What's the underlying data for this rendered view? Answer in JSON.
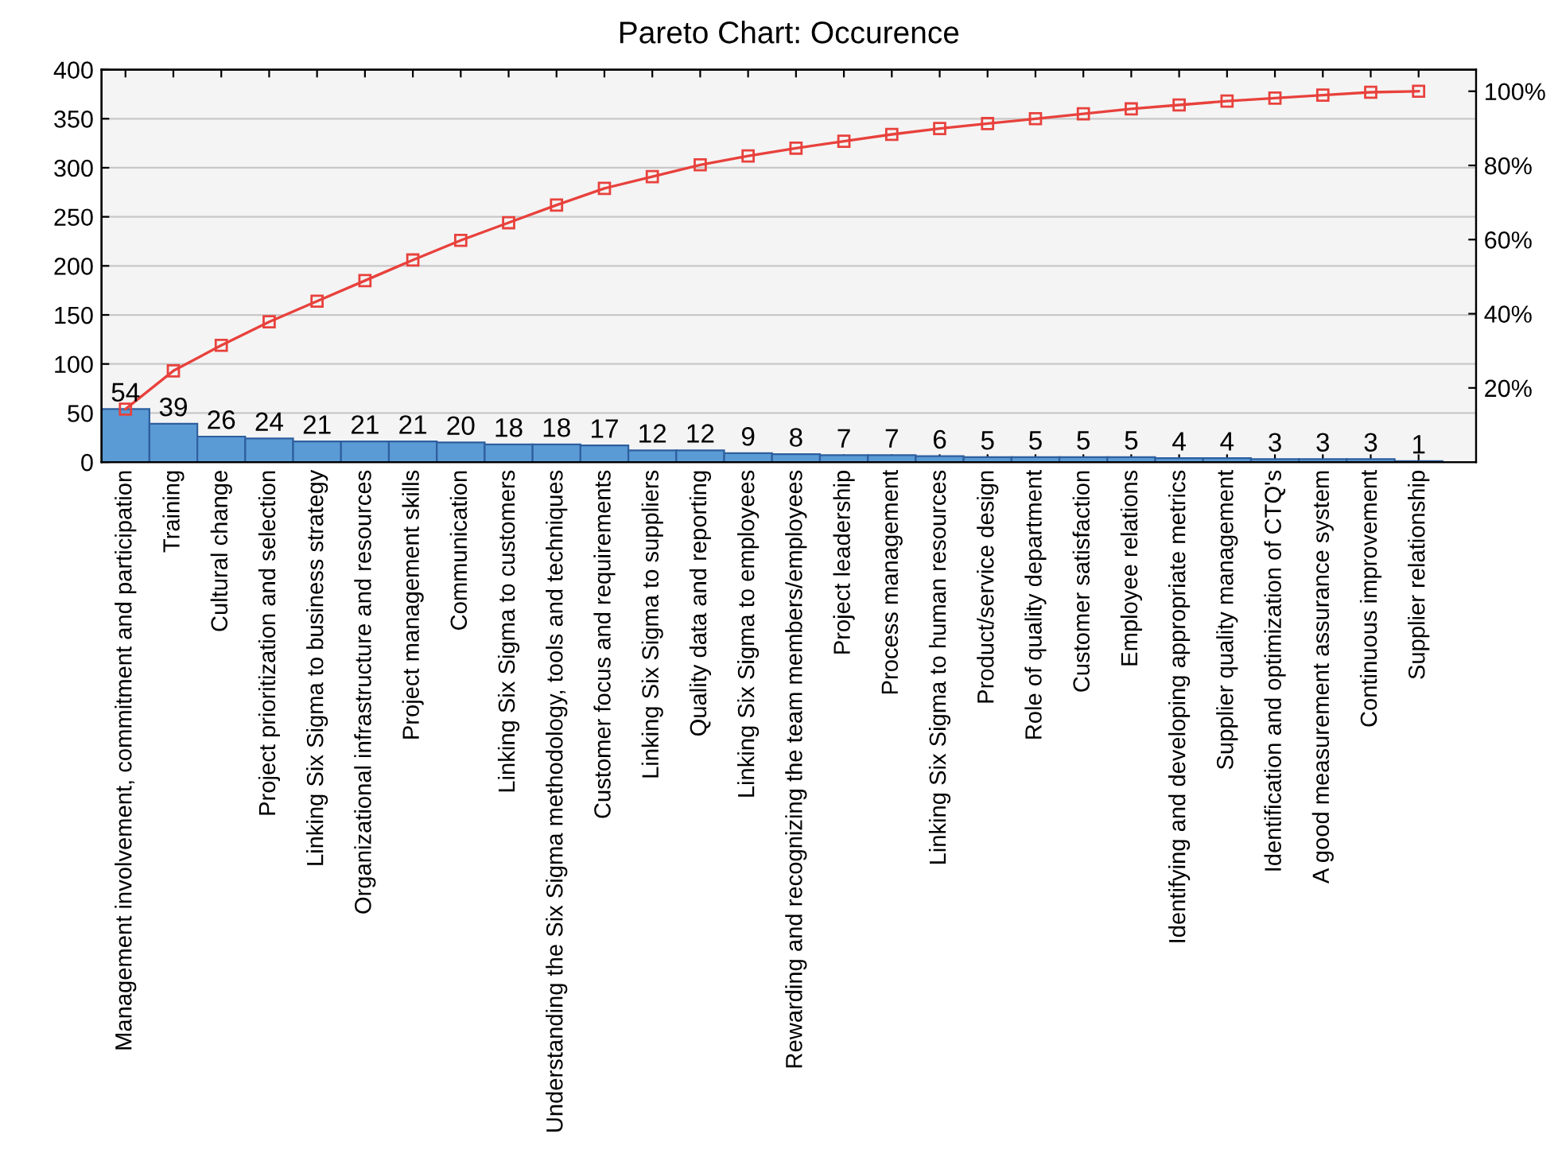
{
  "chart_data": {
    "type": "bar",
    "title": "Pareto Chart: Occurence",
    "categories": [
      "Management involvement, commitment and participation",
      "Training",
      "Cultural change",
      "Project prioritization and selection",
      "Linking Six Sigma to business strategy",
      "Organizational infrastructure and resources",
      "Project management skills",
      "Communication",
      "Linking Six Sigma to customers",
      "Understanding the Six Sigma methodology, tools and techniques",
      "Customer focus and requirements",
      "Linking Six Sigma to suppliers",
      "Quality data and reporting",
      "Linking Six Sigma to employees",
      "Rewarding and recognizing the team members/employees",
      "Project leadership",
      "Process management",
      "Linking Six Sigma to human resources",
      "Product/service design",
      "Role of quality department",
      "Customer satisfaction",
      "Employee relations",
      "Identifying and developing appropriate metrics",
      "Supplier quality management",
      "Identification and optimization of CTQ's",
      "A good measurement assurance system",
      "Continuous improvement",
      "Supplier relationship"
    ],
    "series": [
      {
        "color": "#5b9bd5",
        "values": [
          54,
          39,
          26,
          24,
          21,
          21,
          21,
          20,
          18,
          18,
          17,
          12,
          12,
          9,
          8,
          7,
          7,
          6,
          5,
          5,
          5,
          5,
          4,
          4,
          3,
          3,
          3,
          1
        ],
        "value_labels": [
          "54",
          "39",
          "26",
          "24",
          "21",
          "21",
          "21",
          "20",
          "18",
          "18",
          "17",
          "12",
          "12",
          "9",
          "8",
          "7",
          "7",
          "6",
          "5",
          "5",
          "5",
          "5",
          "4",
          "4",
          "3",
          "3",
          "3",
          "1"
        ]
      },
      {
        "type": "line",
        "color": "#e8413c",
        "marker": "square",
        "values": [
          54,
          93,
          119,
          143,
          164,
          185,
          206,
          226,
          244,
          262,
          279,
          291,
          303,
          312,
          320,
          327,
          334,
          340,
          345,
          350,
          355,
          360,
          364,
          368,
          371,
          374,
          377,
          378
        ]
      }
    ],
    "ylim": [
      0,
      400
    ],
    "yticks": [
      0,
      50,
      100,
      150,
      200,
      250,
      300,
      350,
      400
    ],
    "y2lim": [
      0,
      105.82
    ],
    "y2ticks": [
      {
        "value": 20,
        "label": "20%"
      },
      {
        "value": 40,
        "label": "40%"
      },
      {
        "value": 60,
        "label": "60%"
      },
      {
        "value": 80,
        "label": "80%"
      },
      {
        "value": 100,
        "label": "100%"
      }
    ],
    "grid": "y"
  }
}
